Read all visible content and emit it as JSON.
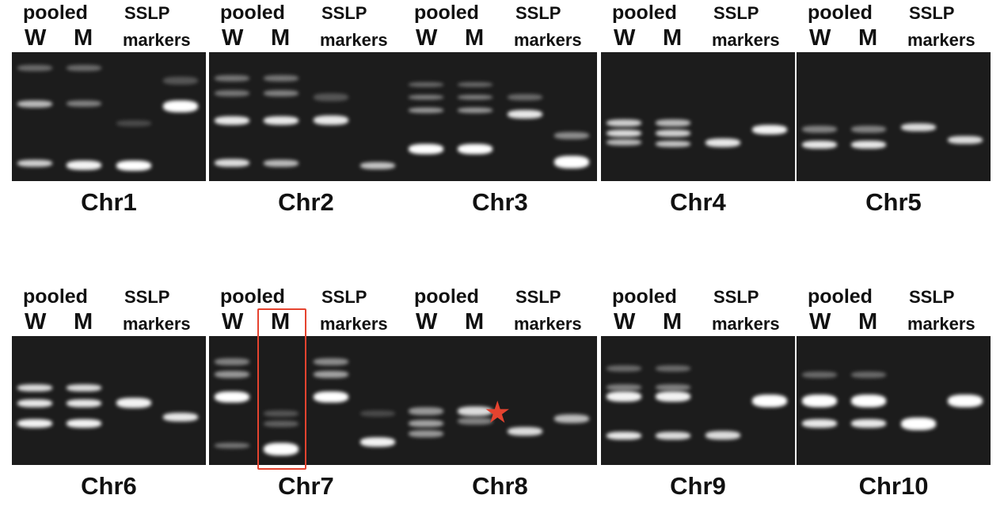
{
  "lane_labels": {
    "pooled": "pooled",
    "wild_type": "W",
    "mutant": "M",
    "sslp": "SSLP",
    "markers": "markers"
  },
  "panels": [
    {
      "chromosome": "Chr1"
    },
    {
      "chromosome": "Chr2"
    },
    {
      "chromosome": "Chr3"
    },
    {
      "chromosome": "Chr4"
    },
    {
      "chromosome": "Chr5"
    },
    {
      "chromosome": "Chr6"
    },
    {
      "chromosome": "Chr7"
    },
    {
      "chromosome": "Chr8"
    },
    {
      "chromosome": "Chr9"
    },
    {
      "chromosome": "Chr10"
    }
  ],
  "annotations": {
    "highlight_color": "#e5432f",
    "highlighted_lane": "Chr7 M",
    "star_marker": "Chr8 M"
  }
}
